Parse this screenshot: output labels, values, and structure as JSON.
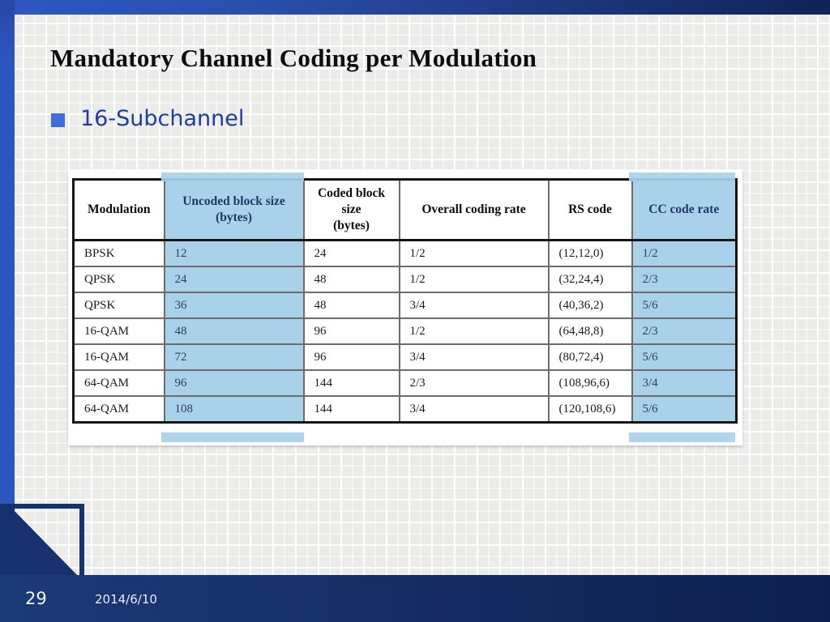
{
  "slide": {
    "title": "Mandatory Channel Coding per Modulation",
    "bullet": "16-Subchannel",
    "page_number": "29",
    "date": "2014/6/10"
  },
  "table": {
    "columns": [
      "Modulation",
      "Uncoded block size\n(bytes)",
      "Coded block size\n(bytes)",
      "Overall coding rate",
      "RS code",
      "CC code rate"
    ],
    "rows": [
      [
        "BPSK",
        "12",
        "24",
        "1/2",
        "(12,12,0)",
        "1/2"
      ],
      [
        "QPSK",
        "24",
        "48",
        "1/2",
        "(32,24,4)",
        "2/3"
      ],
      [
        "QPSK",
        "36",
        "48",
        "3/4",
        "(40,36,2)",
        "5/6"
      ],
      [
        "16-QAM",
        "48",
        "96",
        "1/2",
        "(64,48,8)",
        "2/3"
      ],
      [
        "16-QAM",
        "72",
        "96",
        "3/4",
        "(80,72,4)",
        "5/6"
      ],
      [
        "64-QAM",
        "96",
        "144",
        "2/3",
        "(108,96,6)",
        "3/4"
      ],
      [
        "64-QAM",
        "108",
        "144",
        "3/4",
        "(120,108,6)",
        "5/6"
      ]
    ],
    "highlight_columns": [
      1,
      5
    ]
  },
  "colors": {
    "column_highlight": "#a9d2ea",
    "accent_blue_border": "#2d55c0",
    "navy_footer": "#16316d",
    "bullet_square": "#3e6fd9",
    "bullet_text": "#1c3da1",
    "title_text": "#0d0d0d"
  }
}
